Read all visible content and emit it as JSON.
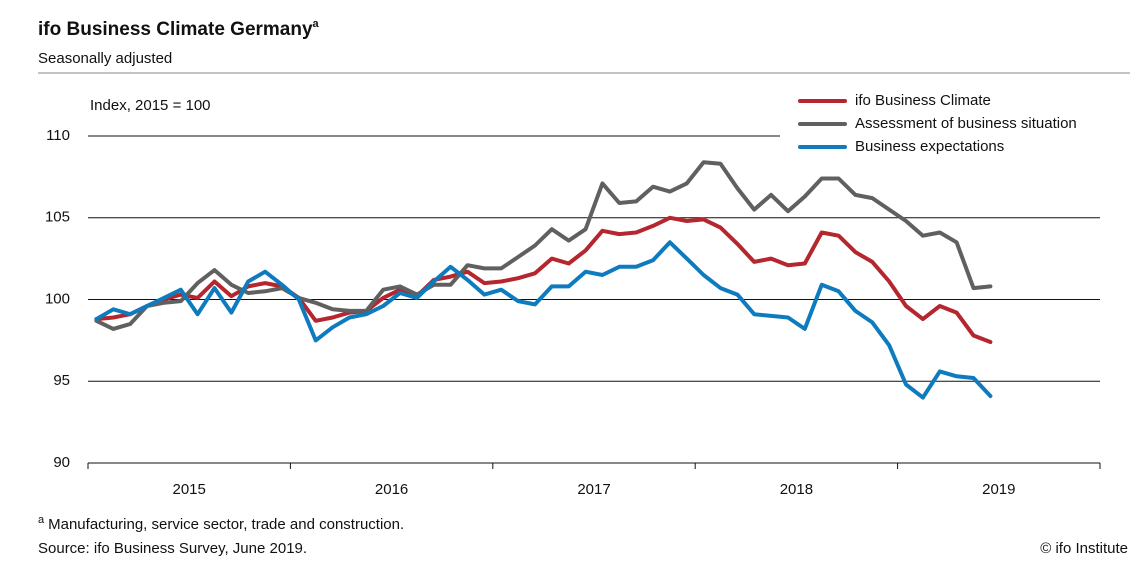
{
  "chart_data": {
    "type": "line",
    "title": "ifo Business Climate Germany",
    "title_marker": "a",
    "subtitle": "Seasonally adjusted",
    "y_label": "Index, 2015 = 100",
    "footnote_marker": "a",
    "footnote": "Manufacturing, service sector, trade and construction.",
    "source": "Source: ifo Business Survey, June 2019.",
    "credit": "© ifo Institute",
    "categories": [
      "2015",
      null,
      null,
      null,
      null,
      null,
      null,
      null,
      null,
      null,
      null,
      null,
      "2016",
      null,
      null,
      null,
      null,
      null,
      null,
      null,
      null,
      null,
      null,
      null,
      "2017",
      null,
      null,
      null,
      null,
      null,
      null,
      null,
      null,
      null,
      null,
      null,
      "2018",
      null,
      null,
      null,
      null,
      null,
      null,
      null,
      null,
      null,
      null,
      null,
      "2019",
      null,
      null,
      null,
      null,
      null
    ],
    "ylim": [
      90,
      110
    ],
    "yticks": [
      90,
      95,
      100,
      105,
      110
    ],
    "grid": true,
    "legend": "top-right",
    "series": [
      {
        "name": "ifo Business Climate",
        "color": "#b5262e",
        "values": [
          98.8,
          98.9,
          99.1,
          99.6,
          100.0,
          100.3,
          100.1,
          101.1,
          100.2,
          100.8,
          101.0,
          100.8,
          100.1,
          98.7,
          98.9,
          99.2,
          99.3,
          100.1,
          100.6,
          100.2,
          101.2,
          101.4,
          101.7,
          101.0,
          101.1,
          101.3,
          101.6,
          102.5,
          102.2,
          103.0,
          104.2,
          104.0,
          104.1,
          104.5,
          105.0,
          104.8,
          104.9,
          104.4,
          103.4,
          102.3,
          102.5,
          102.1,
          102.2,
          104.1,
          103.9,
          102.9,
          102.3,
          101.1,
          99.6,
          98.8,
          99.6,
          99.2,
          97.8,
          97.4
        ]
      },
      {
        "name": "Assessment of business situation",
        "color": "#606060",
        "values": [
          98.7,
          98.2,
          98.5,
          99.6,
          99.8,
          99.9,
          101.0,
          101.8,
          100.9,
          100.4,
          100.5,
          100.7,
          100.1,
          99.8,
          99.4,
          99.3,
          99.3,
          100.6,
          100.8,
          100.3,
          100.9,
          100.9,
          102.1,
          101.9,
          101.9,
          102.6,
          103.3,
          104.3,
          103.6,
          104.3,
          107.1,
          105.9,
          106.0,
          106.9,
          106.6,
          107.1,
          108.4,
          108.3,
          106.8,
          105.5,
          106.4,
          105.4,
          106.3,
          107.4,
          107.4,
          106.4,
          106.2,
          105.5,
          104.8,
          103.9,
          104.1,
          103.5,
          100.7,
          100.8
        ]
      },
      {
        "name": "Business expectations",
        "color": "#0f7bbf",
        "values": [
          98.8,
          99.4,
          99.1,
          99.6,
          100.1,
          100.6,
          99.1,
          100.7,
          99.2,
          101.1,
          101.7,
          100.9,
          100.0,
          97.5,
          98.3,
          98.9,
          99.1,
          99.6,
          100.4,
          100.1,
          101.1,
          102.0,
          101.2,
          100.3,
          100.6,
          99.9,
          99.7,
          100.8,
          100.8,
          101.7,
          101.5,
          102.0,
          102.0,
          102.4,
          103.5,
          102.5,
          101.5,
          100.7,
          100.3,
          99.1,
          99.0,
          98.9,
          98.2,
          100.9,
          100.5,
          99.3,
          98.6,
          97.2,
          94.8,
          94.0,
          95.6,
          95.3,
          95.2,
          94.1
        ]
      }
    ]
  }
}
